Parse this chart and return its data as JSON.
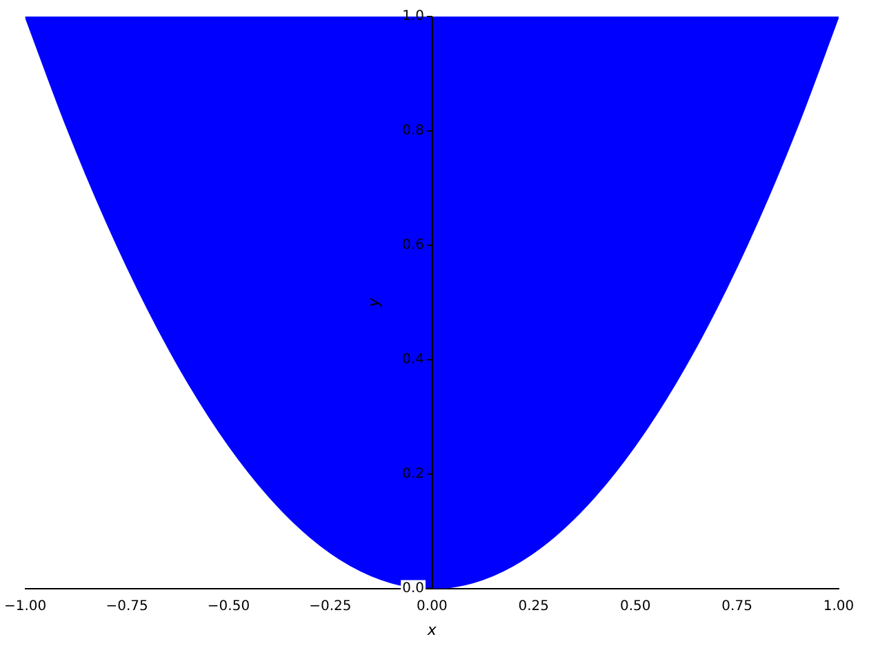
{
  "chart_data": {
    "type": "area",
    "xlabel": "x",
    "ylabel": "y",
    "x": [
      -1,
      -0.9,
      -0.8,
      -0.7,
      -0.6,
      -0.5,
      -0.4,
      -0.3,
      -0.2,
      -0.1,
      0,
      0.1,
      0.2,
      0.3,
      0.4,
      0.5,
      0.6,
      0.7,
      0.8,
      0.9,
      1
    ],
    "series": [
      {
        "type": "area",
        "color": "#0000ff",
        "values": [
          1,
          0.81,
          0.64,
          0.49,
          0.36,
          0.25,
          0.16,
          0.09,
          0.04,
          0.01,
          0,
          0.01,
          0.04,
          0.09,
          0.16,
          0.25,
          0.36,
          0.49,
          0.64,
          0.81,
          1
        ]
      }
    ],
    "xlim": [
      -1,
      1
    ],
    "ylim": [
      0,
      1
    ],
    "xticks": [
      {
        "value": -1,
        "label": "−1.00"
      },
      {
        "value": -0.75,
        "label": "−0.75"
      },
      {
        "value": -0.5,
        "label": "−0.50"
      },
      {
        "value": -0.25,
        "label": "−0.25"
      },
      {
        "value": 0,
        "label": "0.00"
      },
      {
        "value": 0.25,
        "label": "0.25"
      },
      {
        "value": 0.5,
        "label": "0.50"
      },
      {
        "value": 0.75,
        "label": "0.75"
      },
      {
        "value": 1,
        "label": "1.00"
      }
    ],
    "yticks": [
      {
        "value": 0,
        "label": "0.0"
      },
      0.2,
      0.4,
      0.6,
      0.8,
      {
        "value": 1,
        "label": "1.0"
      }
    ],
    "grid": false,
    "legend": false
  }
}
